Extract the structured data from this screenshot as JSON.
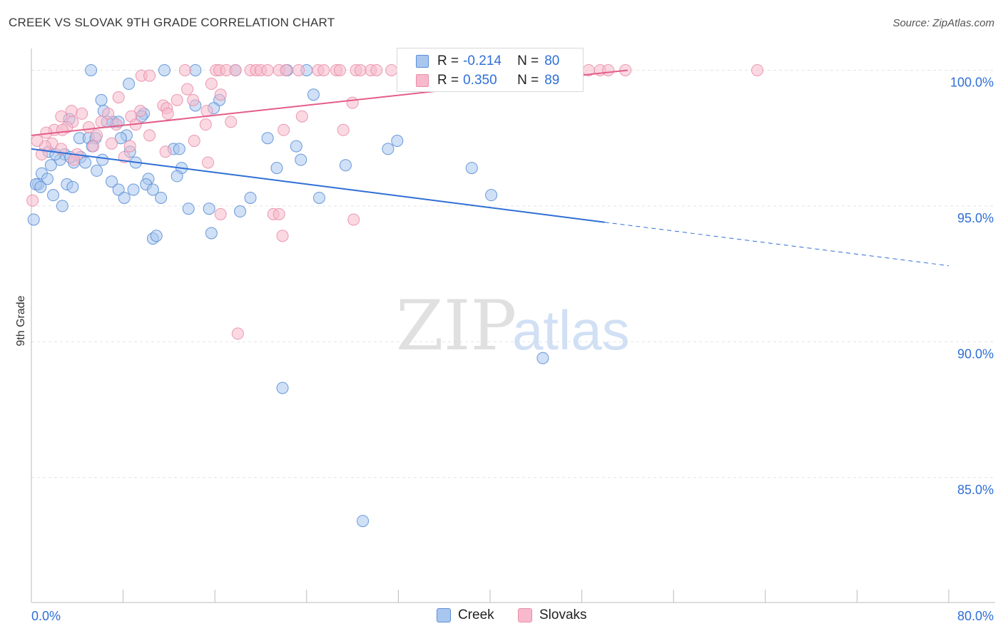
{
  "title": "CREEK VS SLOVAK 9TH GRADE CORRELATION CHART",
  "source": "Source: ZipAtlas.com",
  "watermark": {
    "zip": "ZIP",
    "atlas": "atlas"
  },
  "legend": {
    "rows": [
      {
        "r_label": "R =",
        "r_value": "-0.214",
        "n_label": "N =",
        "n_value": "80"
      },
      {
        "r_label": "R =",
        "r_value": "0.350",
        "n_label": "N =",
        "n_value": "89"
      }
    ]
  },
  "colors": {
    "creek_fill": "#a9c6ef",
    "creek_stroke": "#5b8fd6",
    "creek_line": "#2f6fd6",
    "slovak_fill": "#f7b9cb",
    "slovak_stroke": "#e88fab",
    "slovak_line": "#e35d89",
    "axis_label": "#2f6fd6",
    "grid": "#e3e3e3"
  },
  "chart_data": {
    "type": "scatter",
    "title": "CREEK VS SLOVAK 9TH GRADE CORRELATION CHART",
    "xlabel": "",
    "ylabel": "9th Grade",
    "xlim": [
      0,
      80
    ],
    "ylim": [
      80.4,
      100.8
    ],
    "x_tick_labels": [
      "0.0%",
      "80.0%"
    ],
    "y_ticks": [
      100,
      95,
      90,
      85
    ],
    "y_tick_labels": [
      "100.0%",
      "95.0%",
      "90.0%",
      "85.0%"
    ],
    "grid": true,
    "legend_position": "top-center",
    "series": [
      {
        "name": "Creek",
        "trend": {
          "x0": 0,
          "y0": 97.1,
          "x1": 50,
          "y1": 94.4,
          "dashed_to_x": 80,
          "dashed_to_y": 92.8
        },
        "points": [
          [
            5.2,
            100
          ],
          [
            11.6,
            100
          ],
          [
            14.3,
            100
          ],
          [
            17.8,
            100
          ],
          [
            22.3,
            100
          ],
          [
            24.0,
            100
          ],
          [
            8.5,
            99.5
          ],
          [
            24.6,
            99.1
          ],
          [
            6.1,
            98.9
          ],
          [
            16.4,
            98.9
          ],
          [
            14.3,
            98.7
          ],
          [
            15.9,
            98.6
          ],
          [
            6.3,
            98.5
          ],
          [
            9.8,
            98.4
          ],
          [
            3.3,
            98.2
          ],
          [
            7.1,
            98.1
          ],
          [
            7.6,
            98.1
          ],
          [
            4.2,
            97.5
          ],
          [
            5.0,
            97.5
          ],
          [
            5.6,
            97.5
          ],
          [
            8.3,
            97.6
          ],
          [
            20.6,
            97.5
          ],
          [
            31.9,
            97.4
          ],
          [
            7.8,
            97.5
          ],
          [
            12.4,
            97.1
          ],
          [
            23.1,
            97.2
          ],
          [
            31.1,
            97.1
          ],
          [
            1.5,
            97.0
          ],
          [
            2.9,
            96.9
          ],
          [
            5.3,
            97.2
          ],
          [
            8.6,
            97.0
          ],
          [
            4.3,
            96.8
          ],
          [
            6.2,
            96.7
          ],
          [
            9.1,
            96.6
          ],
          [
            23.5,
            96.7
          ],
          [
            2.5,
            96.7
          ],
          [
            1.7,
            96.5
          ],
          [
            3.7,
            96.6
          ],
          [
            4.7,
            96.6
          ],
          [
            13.1,
            96.4
          ],
          [
            21.4,
            96.4
          ],
          [
            27.4,
            96.5
          ],
          [
            38.4,
            96.4
          ],
          [
            0.9,
            96.2
          ],
          [
            5.7,
            96.3
          ],
          [
            12.7,
            96.1
          ],
          [
            1.4,
            96.0
          ],
          [
            10.2,
            96.0
          ],
          [
            7.0,
            95.9
          ],
          [
            3.1,
            95.8
          ],
          [
            0.6,
            95.8
          ],
          [
            3.6,
            95.7
          ],
          [
            10.0,
            95.8
          ],
          [
            10.6,
            95.6
          ],
          [
            7.6,
            95.6
          ],
          [
            8.9,
            95.6
          ],
          [
            0.4,
            95.8
          ],
          [
            40.1,
            95.4
          ],
          [
            1.9,
            95.4
          ],
          [
            8.1,
            95.3
          ],
          [
            11.3,
            95.3
          ],
          [
            19.1,
            95.3
          ],
          [
            25.1,
            95.3
          ],
          [
            2.7,
            95.0
          ],
          [
            13.7,
            94.9
          ],
          [
            15.5,
            94.9
          ],
          [
            18.2,
            94.8
          ],
          [
            0.2,
            94.5
          ],
          [
            15.7,
            94.0
          ],
          [
            10.6,
            93.8
          ],
          [
            10.9,
            93.9
          ],
          [
            44.6,
            89.4
          ],
          [
            21.9,
            88.3
          ],
          [
            28.9,
            83.4
          ],
          [
            2.1,
            96.9
          ],
          [
            3.4,
            96.8
          ],
          [
            9.6,
            98.3
          ],
          [
            12.9,
            97.1
          ],
          [
            0.8,
            95.7
          ],
          [
            6.6,
            98.1
          ]
        ]
      },
      {
        "name": "Slovaks",
        "trend": {
          "x0": 0,
          "y0": 97.6,
          "x1": 52,
          "y1": 100.0
        },
        "points": [
          [
            13.4,
            100
          ],
          [
            16.1,
            100
          ],
          [
            16.4,
            100
          ],
          [
            17.0,
            100
          ],
          [
            17.8,
            100
          ],
          [
            19.1,
            100
          ],
          [
            19.6,
            100
          ],
          [
            20.0,
            100
          ],
          [
            20.6,
            100
          ],
          [
            21.6,
            100
          ],
          [
            22.2,
            100
          ],
          [
            23.3,
            100
          ],
          [
            25.0,
            100
          ],
          [
            25.5,
            100
          ],
          [
            26.6,
            100
          ],
          [
            26.9,
            100
          ],
          [
            28.3,
            100
          ],
          [
            28.7,
            100
          ],
          [
            29.6,
            100
          ],
          [
            30.1,
            100
          ],
          [
            31.4,
            100
          ],
          [
            33.6,
            100
          ],
          [
            35.3,
            100
          ],
          [
            37.6,
            100
          ],
          [
            38.7,
            100
          ],
          [
            40.3,
            100
          ],
          [
            42.7,
            100
          ],
          [
            44.7,
            100
          ],
          [
            48.6,
            100
          ],
          [
            49.6,
            100
          ],
          [
            50.3,
            100
          ],
          [
            51.8,
            100
          ],
          [
            63.3,
            100
          ],
          [
            9.6,
            99.8
          ],
          [
            10.3,
            99.8
          ],
          [
            15.7,
            99.5
          ],
          [
            13.6,
            99.3
          ],
          [
            16.5,
            99.1
          ],
          [
            7.6,
            99.0
          ],
          [
            12.7,
            98.9
          ],
          [
            14.1,
            98.9
          ],
          [
            11.5,
            98.7
          ],
          [
            11.8,
            98.6
          ],
          [
            28.0,
            98.8
          ],
          [
            3.5,
            98.5
          ],
          [
            4.4,
            98.4
          ],
          [
            6.7,
            98.4
          ],
          [
            9.5,
            98.5
          ],
          [
            8.7,
            98.3
          ],
          [
            2.6,
            98.3
          ],
          [
            11.9,
            98.4
          ],
          [
            15.3,
            98.5
          ],
          [
            23.6,
            98.3
          ],
          [
            3.6,
            98.1
          ],
          [
            7.4,
            98.0
          ],
          [
            6.1,
            98.1
          ],
          [
            17.4,
            98.1
          ],
          [
            15.2,
            98.0
          ],
          [
            9.1,
            98.0
          ],
          [
            5.0,
            97.9
          ],
          [
            2.0,
            97.8
          ],
          [
            3.1,
            97.9
          ],
          [
            2.7,
            97.8
          ],
          [
            22.0,
            97.8
          ],
          [
            27.2,
            97.8
          ],
          [
            1.3,
            97.7
          ],
          [
            10.3,
            97.6
          ],
          [
            5.7,
            97.6
          ],
          [
            1.8,
            97.3
          ],
          [
            7.0,
            97.3
          ],
          [
            8.6,
            97.2
          ],
          [
            14.2,
            97.4
          ],
          [
            1.2,
            97.2
          ],
          [
            11.7,
            97.0
          ],
          [
            2.6,
            97.1
          ],
          [
            4.0,
            96.9
          ],
          [
            0.9,
            96.9
          ],
          [
            8.1,
            96.8
          ],
          [
            3.7,
            96.7
          ],
          [
            15.4,
            96.6
          ],
          [
            0.1,
            95.2
          ],
          [
            16.5,
            94.7
          ],
          [
            21.1,
            94.7
          ],
          [
            21.6,
            94.7
          ],
          [
            28.1,
            94.5
          ],
          [
            21.9,
            93.9
          ],
          [
            18.0,
            90.3
          ],
          [
            5.4,
            97.2
          ],
          [
            0.5,
            97.4
          ]
        ]
      }
    ]
  }
}
